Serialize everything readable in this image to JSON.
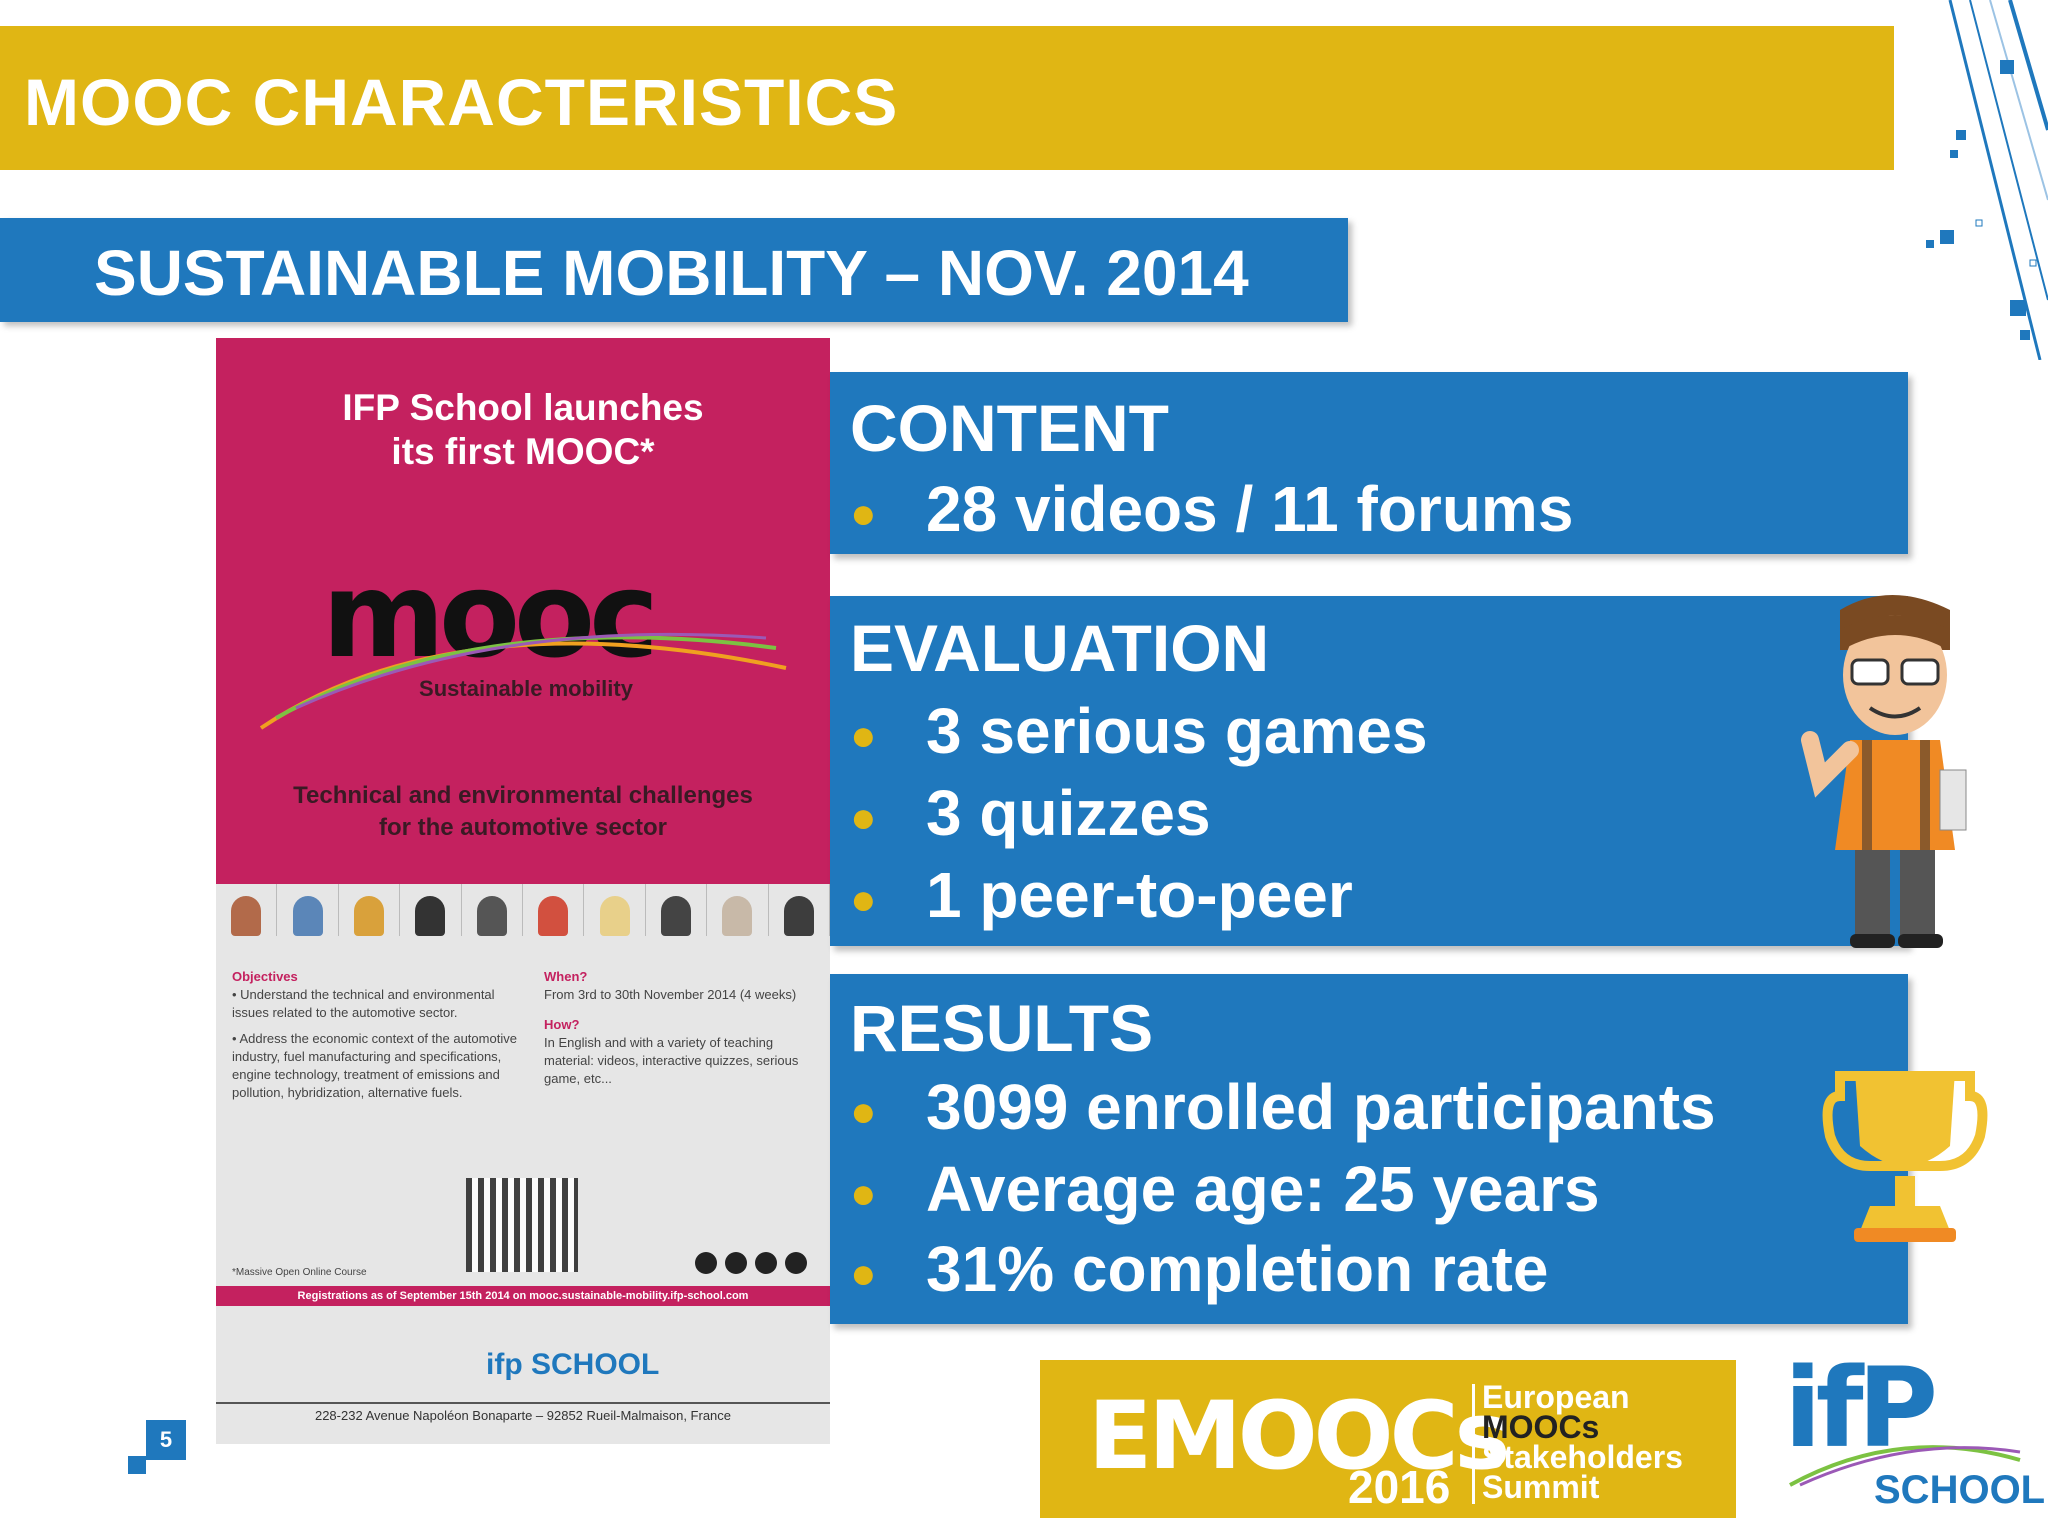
{
  "slide": {
    "title": "MOOC CHARACTERISTICS",
    "subtitle": "SUSTAINABLE MOBILITY – NOV. 2014",
    "page_number": "5"
  },
  "colors": {
    "accent_yellow": "#e0b614",
    "accent_blue": "#1f78bd",
    "poster_magenta": "#c4215f"
  },
  "panels": {
    "content": {
      "title": "CONTENT",
      "items": [
        "28 videos / 11 forums"
      ]
    },
    "evaluation": {
      "title": "EVALUATION",
      "items": [
        "3 serious games",
        "3 quizzes",
        "1 peer-to-peer"
      ]
    },
    "results": {
      "title": "RESULTS",
      "items": [
        "3099 enrolled participants",
        "Average age: 25 years",
        "31% completion rate"
      ]
    }
  },
  "poster": {
    "headline_1": "IFP School launches",
    "headline_2": "its first MOOC*",
    "logo_text": "mooc",
    "tagline": "Sustainable mobility",
    "challenges_1": "Technical and environmental challenges",
    "challenges_2": "for the automotive sector",
    "objectives_title": "Objectives",
    "objective_1": "• Understand the technical and environmental issues related to the automotive sector.",
    "objective_2": "• Address the economic context of the automotive industry, fuel manufacturing and specifications, engine technology, treatment of emissions and pollution, hybridization, alternative fuels.",
    "when_title": "When?",
    "when_text": "From 3rd to 30th November 2014 (4 weeks)",
    "how_title": "How?",
    "how_text": "In English and with a variety of teaching material: videos, interactive quizzes, serious game, etc...",
    "footnote": "*Massive Open Online Course",
    "registration": "Registrations as of September 15th 2014 on mooc.sustainable-mobility.ifp-school.com",
    "school_logo": "ifp SCHOOL",
    "address": "228-232 Avenue Napoléon Bonaparte – 92852 Rueil-Malmaison, France"
  },
  "emoocs": {
    "brand": "EMOOCs",
    "year": "2016",
    "line_1": "European",
    "line_2": "MOOCs",
    "line_3": "Stakeholders",
    "line_4": "Summit"
  },
  "ifp_logo": {
    "mark": "ifP",
    "word": "SCHOOL"
  },
  "icons": [
    "student-thumbs-up-icon",
    "trophy-icon",
    "decorative-pixel-pattern"
  ]
}
